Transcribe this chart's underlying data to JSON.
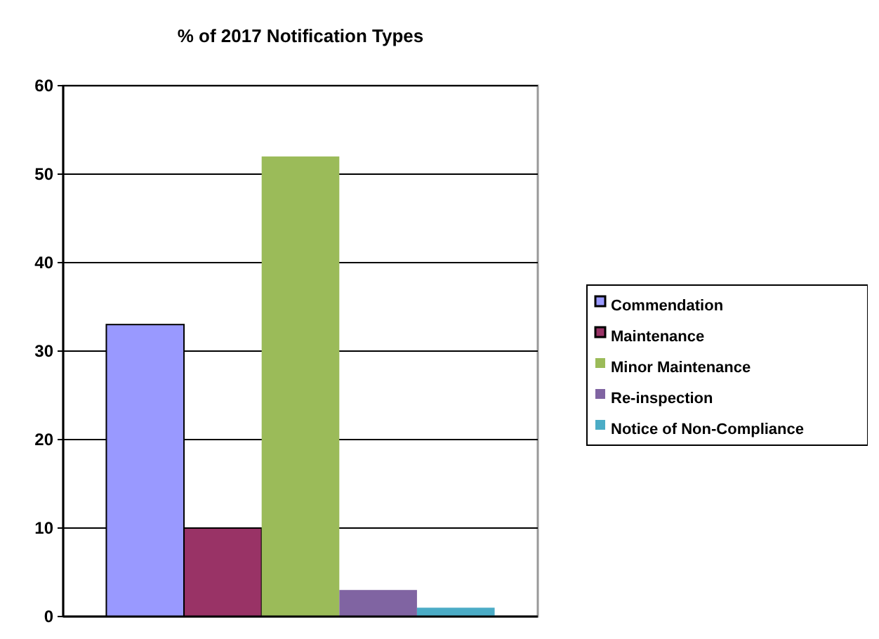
{
  "chart_data": {
    "type": "bar",
    "title": "% of 2017 Notification Types",
    "categories": [
      null
    ],
    "series": [
      {
        "name": "Commendation",
        "color": "#9999ff",
        "values": [
          33
        ]
      },
      {
        "name": "Maintenance",
        "color": "#993366",
        "values": [
          10
        ]
      },
      {
        "name": "Minor Maintenance",
        "color": "#9bbb59",
        "values": [
          52
        ]
      },
      {
        "name": "Re-inspection",
        "color": "#8064a2",
        "values": [
          3
        ]
      },
      {
        "name": "Notice of Non-Compliance",
        "color": "#4bacc6",
        "values": [
          1
        ]
      }
    ],
    "ylim": [
      0,
      60
    ],
    "yticks": [
      0,
      10,
      20,
      30,
      40,
      50,
      60
    ],
    "grid": "y",
    "legend": "right"
  }
}
